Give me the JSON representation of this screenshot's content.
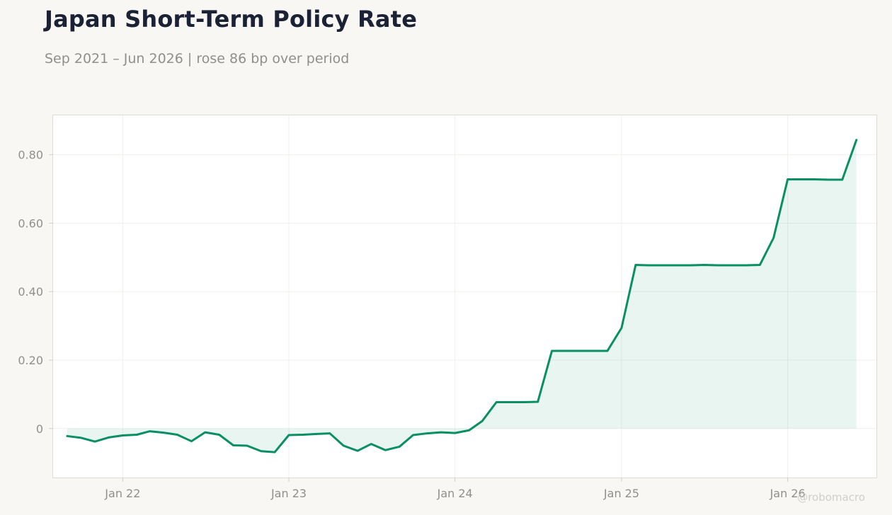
{
  "header": {
    "title": "Japan Short-Term Policy Rate",
    "subtitle": "Sep 2021 – Jun 2026 | rose 86 bp over period"
  },
  "watermark": "@robomacro",
  "colors": {
    "line": "#0a8f65",
    "area": "#0a8f65",
    "background": "#f8f7f4",
    "plot_background": "#ffffff",
    "grid": "#f0efec",
    "border": "#dcdcd6",
    "title": "#1b2236",
    "muted": "#8f8f8b"
  },
  "chart_data": {
    "type": "area",
    "title": "Japan Short-Term Policy Rate",
    "subtitle": "Sep 2021 – Jun 2026 | rose 86 bp over period",
    "xlabel": "",
    "ylabel": "",
    "x_ticks": [
      {
        "date": "2022-01-01",
        "label": "Jan 22"
      },
      {
        "date": "2023-01-01",
        "label": "Jan 23"
      },
      {
        "date": "2024-01-01",
        "label": "Jan 24"
      },
      {
        "date": "2025-01-01",
        "label": "Jan 25"
      },
      {
        "date": "2026-01-01",
        "label": "Jan 26"
      }
    ],
    "y_ticks": [
      {
        "value": 0,
        "label": "0"
      },
      {
        "value": 0.2,
        "label": "0.20"
      },
      {
        "value": 0.4,
        "label": "0.40"
      },
      {
        "value": 0.6,
        "label": "0.60"
      },
      {
        "value": 0.8,
        "label": "0.80"
      }
    ],
    "xlim": [
      "2021-08-01",
      "2026-07-15"
    ],
    "ylim": [
      -0.143,
      0.915
    ],
    "grid": true,
    "legend": false,
    "series": [
      {
        "x": [
          "2021-09-01",
          "2021-10-01",
          "2021-11-01",
          "2021-12-01",
          "2022-01-01",
          "2022-02-01",
          "2022-03-01",
          "2022-04-01",
          "2022-05-01",
          "2022-06-01",
          "2022-07-01",
          "2022-08-01",
          "2022-09-01",
          "2022-10-01",
          "2022-11-01",
          "2022-12-01",
          "2023-01-01",
          "2023-02-01",
          "2023-03-01",
          "2023-04-01",
          "2023-05-01",
          "2023-06-01",
          "2023-07-01",
          "2023-08-01",
          "2023-09-01",
          "2023-10-01",
          "2023-11-01",
          "2023-12-01",
          "2024-01-01",
          "2024-02-01",
          "2024-03-01",
          "2024-04-01",
          "2024-05-01",
          "2024-06-01",
          "2024-07-01",
          "2024-08-01",
          "2024-09-01",
          "2024-10-01",
          "2024-11-01",
          "2024-12-01",
          "2025-01-01",
          "2025-02-01",
          "2025-03-01",
          "2025-04-01",
          "2025-05-01",
          "2025-06-01",
          "2025-07-01",
          "2025-08-01",
          "2025-09-01",
          "2025-10-01",
          "2025-11-01",
          "2025-12-01",
          "2026-01-01",
          "2026-02-01",
          "2026-03-01",
          "2026-04-01",
          "2026-05-01",
          "2026-06-01"
        ],
        "values": [
          -0.022,
          -0.027,
          -0.038,
          -0.026,
          -0.02,
          -0.018,
          -0.008,
          -0.012,
          -0.018,
          -0.037,
          -0.011,
          -0.018,
          -0.049,
          -0.05,
          -0.066,
          -0.069,
          -0.019,
          -0.018,
          -0.016,
          -0.014,
          -0.05,
          -0.065,
          -0.045,
          -0.063,
          -0.053,
          -0.019,
          -0.014,
          -0.011,
          -0.013,
          -0.005,
          0.022,
          0.077,
          0.077,
          0.077,
          0.078,
          0.227,
          0.227,
          0.227,
          0.227,
          0.227,
          0.294,
          0.478,
          0.477,
          0.477,
          0.477,
          0.477,
          0.478,
          0.477,
          0.477,
          0.477,
          0.478,
          0.557,
          0.728,
          0.728,
          0.728,
          0.727,
          0.727,
          0.843
        ]
      }
    ]
  }
}
